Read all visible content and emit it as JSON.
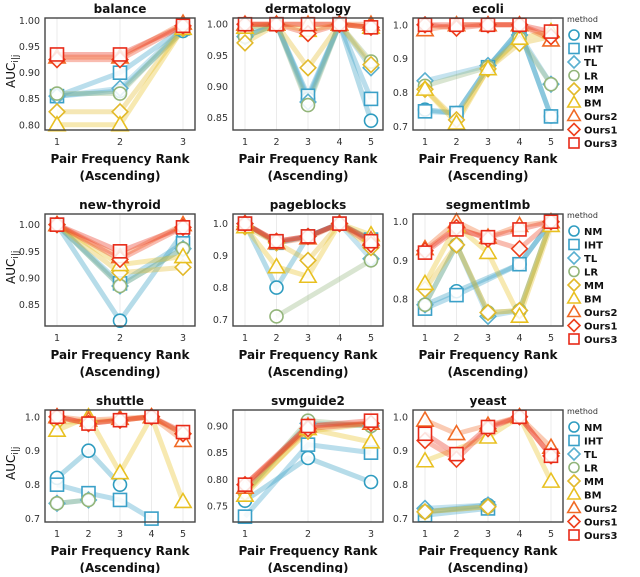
{
  "chart_data": {
    "type": "line",
    "xlabel": "Pair Frequency Rank",
    "xlabel2": "(Ascending)",
    "ylabel": "AUC",
    "ylabel_sub": "i|j",
    "legend": {
      "title": "method",
      "placement": "right"
    },
    "methods": [
      {
        "name": "NM",
        "marker": "circle",
        "color": "#2e9cc0"
      },
      {
        "name": "IHT",
        "marker": "square",
        "color": "#3aa0c8"
      },
      {
        "name": "TL",
        "marker": "diamond",
        "color": "#5ab0d0"
      },
      {
        "name": "LR",
        "marker": "circle",
        "color": "#93b57a"
      },
      {
        "name": "MM",
        "marker": "diamond",
        "color": "#e2b92a"
      },
      {
        "name": "BM",
        "marker": "triangle",
        "color": "#e8c020"
      },
      {
        "name": "Ours2",
        "marker": "triangle",
        "color": "#f06a25"
      },
      {
        "name": "Ours1",
        "marker": "diamond",
        "color": "#ee3f1c"
      },
      {
        "name": "Ours3",
        "marker": "square",
        "color": "#e82a18"
      }
    ],
    "panels": [
      {
        "title": "balance",
        "x": [
          1,
          2,
          3
        ],
        "ylim": [
          0.79,
          1.005
        ],
        "yticks": [
          "0.80",
          "0.85",
          "0.90",
          "0.95",
          "1.00"
        ],
        "series": [
          [
            0.855,
            0.865,
            0.98
          ],
          [
            0.855,
            0.9,
            0.985
          ],
          [
            0.855,
            0.87,
            0.985
          ],
          [
            0.86,
            0.86,
            0.985
          ],
          [
            0.825,
            0.825,
            0.985
          ],
          [
            0.8,
            0.8,
            0.985
          ],
          [
            0.93,
            0.93,
            0.995
          ],
          [
            0.925,
            0.925,
            0.99
          ],
          [
            0.935,
            0.935,
            0.99
          ]
        ]
      },
      {
        "title": "dermatology",
        "x": [
          1,
          2,
          3,
          4,
          5
        ],
        "ylim": [
          0.83,
          1.01
        ],
        "yticks": [
          "0.85",
          "0.90",
          "0.95",
          "1.00"
        ],
        "series": [
          [
            0.98,
            1,
            0.88,
            1,
            0.845
          ],
          [
            0.99,
            1,
            0.885,
            1,
            0.88
          ],
          [
            0.98,
            1,
            0.875,
            1,
            0.93
          ],
          [
            0.98,
            1,
            0.87,
            1,
            0.94
          ],
          [
            0.97,
            1,
            0.93,
            1,
            0.935
          ],
          [
            0.995,
            1,
            0.99,
            1,
            0.995
          ],
          [
            1,
            1,
            1,
            1,
            1
          ],
          [
            1,
            1,
            0.985,
            1,
            0.995
          ],
          [
            1,
            1,
            1,
            1,
            0.995
          ]
        ]
      },
      {
        "title": "ecoli",
        "x": [
          1,
          2,
          3,
          4,
          5
        ],
        "ylim": [
          0.69,
          1.02
        ],
        "yticks": [
          "0.7",
          "0.8",
          "0.9",
          "1.0"
        ],
        "series": [
          [
            0.75,
            0.74,
            0.875,
            0.985,
            0.73
          ],
          [
            0.745,
            0.74,
            0.875,
            0.985,
            0.73
          ],
          [
            0.835,
            null,
            0.88,
            0.97,
            0.825
          ],
          [
            0.82,
            null,
            0.875,
            0.96,
            0.825
          ],
          [
            0.81,
            0.72,
            0.87,
            0.945,
            0.965
          ],
          [
            0.81,
            0.71,
            0.87,
            0.96,
            0.98
          ],
          [
            0.985,
            1,
            1,
            1,
            0.955
          ],
          [
            1,
            0.99,
            1,
            1,
            0.965
          ],
          [
            1,
            1,
            1,
            1,
            0.98
          ]
        ]
      },
      {
        "title": "new-thyroid",
        "x": [
          1,
          2,
          3
        ],
        "ylim": [
          0.81,
          1.02
        ],
        "yticks": [
          "0.85",
          "0.90",
          "0.95",
          "1.00"
        ],
        "series": [
          [
            1,
            0.82,
            0.985
          ],
          [
            1,
            0.89,
            0.965
          ],
          [
            1,
            0.885,
            0.955
          ],
          [
            1,
            0.885,
            0.955
          ],
          [
            1,
            0.91,
            0.92
          ],
          [
            1,
            0.925,
            0.94
          ],
          [
            1,
            0.94,
            1
          ],
          [
            1,
            0.935,
            0.995
          ],
          [
            1,
            0.95,
            0.995
          ]
        ]
      },
      {
        "title": "pageblocks",
        "x": [
          1,
          2,
          3,
          4,
          5
        ],
        "ylim": [
          0.68,
          1.03
        ],
        "yticks": [
          "0.7",
          "0.8",
          "0.9",
          "1.0"
        ],
        "series": [
          [
            1,
            0.8,
            0.96,
            1,
            0.95
          ],
          [
            1,
            0.94,
            0.96,
            1,
            0.95
          ],
          [
            1,
            0.94,
            0.96,
            1,
            0.89
          ],
          [
            null,
            0.71,
            null,
            null,
            0.885
          ],
          [
            0.99,
            0.94,
            0.885,
            1,
            0.925
          ],
          [
            0.99,
            0.865,
            0.835,
            1,
            0.965
          ],
          [
            1,
            0.94,
            0.955,
            1,
            0.95
          ],
          [
            1,
            0.945,
            0.96,
            1,
            0.935
          ],
          [
            1,
            0.945,
            0.96,
            1,
            0.945
          ]
        ]
      },
      {
        "title": "segmentImb",
        "x": [
          1,
          2,
          3,
          4,
          5
        ],
        "ylim": [
          0.73,
          1.02
        ],
        "yticks": [
          "0.8",
          "0.9",
          "1.0"
        ],
        "series": [
          [
            0.785,
            0.82,
            null,
            0.89,
            1
          ],
          [
            0.775,
            0.81,
            null,
            0.89,
            1
          ],
          [
            0.785,
            0.94,
            0.755,
            0.77,
            1
          ],
          [
            0.785,
            0.94,
            0.765,
            0.77,
            1
          ],
          [
            0.825,
            0.94,
            0.765,
            0.77,
            1
          ],
          [
            0.84,
            0.99,
            0.92,
            0.755,
            0.99
          ],
          [
            0.93,
            1,
            0.96,
            0.99,
            1
          ],
          [
            0.925,
            0.985,
            0.955,
            0.93,
            1
          ],
          [
            0.92,
            0.98,
            0.96,
            0.98,
            1
          ]
        ]
      },
      {
        "title": "shuttle",
        "x": [
          1,
          2,
          3,
          4,
          5
        ],
        "ylim": [
          0.69,
          1.02
        ],
        "yticks": [
          "0.7",
          "0.8",
          "0.9",
          "1.0"
        ],
        "series": [
          [
            0.82,
            0.9,
            0.8,
            null,
            null
          ],
          [
            0.8,
            0.775,
            0.755,
            0.7,
            null
          ],
          [
            0.745,
            0.755,
            null,
            null,
            null
          ],
          [
            0.745,
            0.755,
            null,
            null,
            null
          ],
          [
            0.985,
            0.985,
            0.99,
            1,
            0.95
          ],
          [
            0.96,
            1,
            0.835,
            1,
            0.75
          ],
          [
            1,
            0.99,
            0.995,
            1,
            0.93
          ],
          [
            1,
            0.98,
            0.99,
            1,
            0.95
          ],
          [
            1,
            0.98,
            0.99,
            1,
            0.955
          ]
        ]
      },
      {
        "title": "svmguide2",
        "x": [
          1,
          2,
          3
        ],
        "ylim": [
          0.72,
          0.93
        ],
        "yticks": [
          "0.75",
          "0.80",
          "0.85",
          "0.90"
        ],
        "series": [
          [
            0.76,
            0.84,
            0.795
          ],
          [
            0.73,
            0.865,
            0.85
          ],
          [
            0.775,
            0.905,
            0.9
          ],
          [
            0.775,
            0.91,
            0.9
          ],
          [
            0.775,
            0.89,
            0.905
          ],
          [
            0.77,
            0.895,
            0.87
          ],
          [
            0.785,
            0.9,
            0.905
          ],
          [
            0.79,
            0.895,
            0.905
          ],
          [
            0.79,
            0.9,
            0.91
          ]
        ]
      },
      {
        "title": "yeast",
        "x": [
          1,
          2,
          3,
          4,
          5
        ],
        "ylim": [
          0.69,
          1.02
        ],
        "yticks": [
          "0.7",
          "0.8",
          "0.9",
          "1.0"
        ],
        "series": [
          [
            0.72,
            null,
            0.74,
            null,
            null
          ],
          [
            0.71,
            null,
            0.73,
            null,
            null
          ],
          [
            0.73,
            null,
            0.74,
            null,
            null
          ],
          [
            0.72,
            null,
            0.735,
            null,
            null
          ],
          [
            0.72,
            null,
            0.735,
            null,
            null
          ],
          [
            0.87,
            null,
            0.94,
            1,
            0.81
          ],
          [
            0.99,
            0.95,
            0.975,
            1,
            0.91
          ],
          [
            0.93,
            0.875,
            0.965,
            1,
            0.885
          ],
          [
            0.95,
            0.89,
            0.97,
            1,
            0.885
          ]
        ]
      }
    ]
  }
}
